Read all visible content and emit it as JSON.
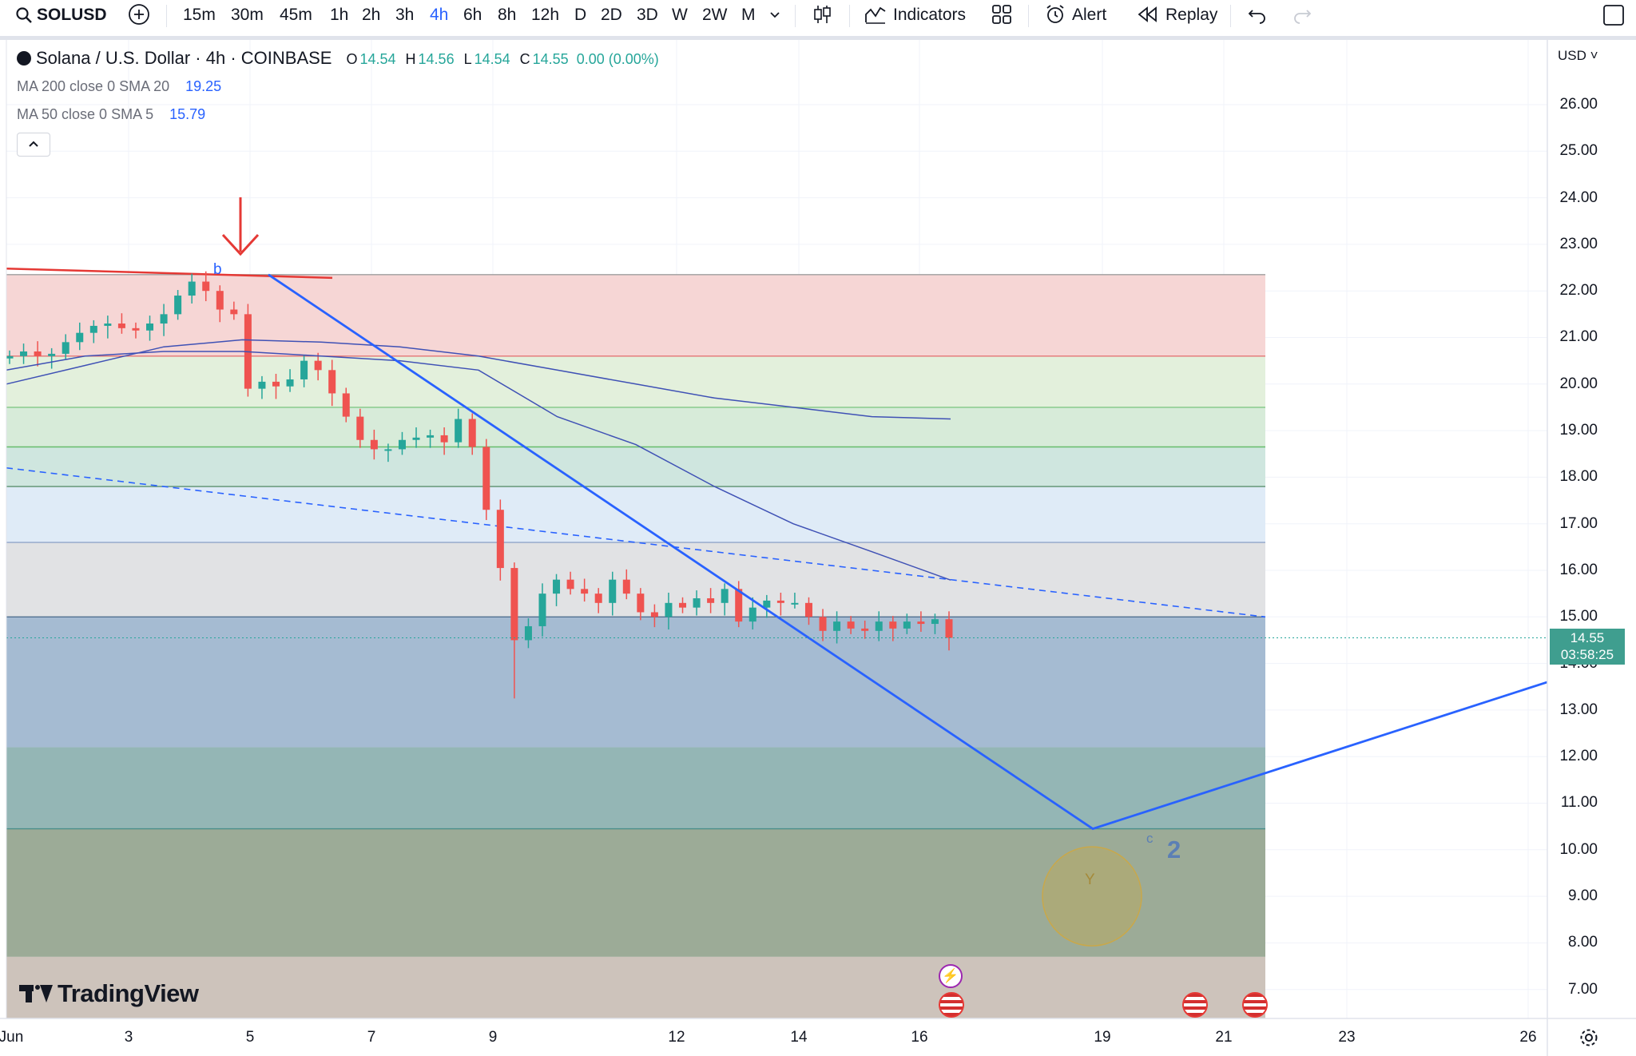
{
  "toolbar": {
    "symbol": "SOLUSD",
    "intervals": [
      "15m",
      "30m",
      "45m",
      "1h",
      "2h",
      "3h",
      "4h",
      "6h",
      "8h",
      "12h",
      "D",
      "2D",
      "3D",
      "W",
      "2W",
      "M"
    ],
    "selected_interval": "4h",
    "indicators_label": "Indicators",
    "alert_label": "Alert",
    "replay_label": "Replay"
  },
  "legend": {
    "title": "Solana / U.S. Dollar · 4h · COINBASE",
    "open_key": "O",
    "open": "14.54",
    "high_key": "H",
    "high": "14.56",
    "low_key": "L",
    "low": "14.54",
    "close_key": "C",
    "close": "14.55",
    "change": "0.00 (0.00%)",
    "ma1_label": "MA 200 close 0 SMA 20",
    "ma1_value": "19.25",
    "ma2_label": "MA 50 close 0 SMA 5",
    "ma2_value": "15.79"
  },
  "price_axis": {
    "currency": "USD",
    "ticks": [
      "26.00",
      "25.00",
      "24.00",
      "23.00",
      "22.00",
      "21.00",
      "20.00",
      "19.00",
      "18.00",
      "17.00",
      "16.00",
      "15.00",
      "14.00",
      "13.00",
      "12.00",
      "11.00",
      "10.00",
      "9.00",
      "8.00",
      "7.00"
    ],
    "last_price": "14.55",
    "countdown": "03:58:25"
  },
  "time_axis": {
    "ticks": [
      "Jun",
      "3",
      "5",
      "7",
      "9",
      "12",
      "14",
      "16",
      "19",
      "21",
      "23",
      "26"
    ]
  },
  "annotations": {
    "wave_b": "b",
    "wave_c": "c",
    "wave_2": "2",
    "circle_label": "Y"
  },
  "watermark": "TradingView",
  "colors": {
    "up": "#26a69a",
    "down": "#ef5350",
    "trendline": "#2962ff",
    "ma": "#3f51b5",
    "arrow": "#e53935"
  },
  "chart_data": {
    "type": "candlestick",
    "symbol": "SOLUSD",
    "interval": "4h",
    "ylim": [
      6.5,
      27
    ],
    "price_labels": [
      26,
      25,
      24,
      23,
      22,
      21,
      20,
      19,
      18,
      17,
      16,
      15,
      14,
      13,
      12,
      11,
      10,
      9,
      8,
      7
    ],
    "last_close": 14.55,
    "candles_close_approx": [
      20.6,
      20.7,
      20.6,
      20.65,
      20.9,
      21.1,
      21.25,
      21.3,
      21.2,
      21.15,
      21.3,
      21.5,
      21.9,
      22.2,
      22.0,
      21.6,
      21.5,
      19.9,
      20.05,
      19.95,
      20.1,
      20.5,
      20.3,
      19.8,
      19.3,
      18.8,
      18.6,
      18.6,
      18.8,
      18.85,
      18.9,
      18.75,
      19.25,
      18.65,
      17.3,
      16.05,
      14.5,
      14.8,
      15.5,
      15.8,
      15.6,
      15.5,
      15.3,
      15.8,
      15.5,
      15.1,
      15.0,
      15.3,
      15.2,
      15.4,
      15.3,
      15.6,
      14.9,
      15.2,
      15.35,
      15.3,
      15.3,
      15.0,
      14.7,
      14.9,
      14.75,
      14.7,
      14.9,
      14.75,
      14.9,
      14.85,
      14.95,
      14.55
    ],
    "ma_sma20": [
      20.0,
      20.4,
      20.8,
      20.95,
      20.9,
      20.8,
      20.6,
      20.3,
      20.0,
      19.7,
      19.5,
      19.3,
      19.25
    ],
    "ma_sma5": [
      20.3,
      20.6,
      20.7,
      20.7,
      20.6,
      20.5,
      20.3,
      19.3,
      18.7,
      17.8,
      17.0,
      16.4,
      15.79
    ],
    "zone_levels": [
      22.35,
      20.6,
      19.5,
      18.65,
      17.8,
      16.6,
      15.0,
      12.2,
      10.45,
      7.7
    ]
  }
}
